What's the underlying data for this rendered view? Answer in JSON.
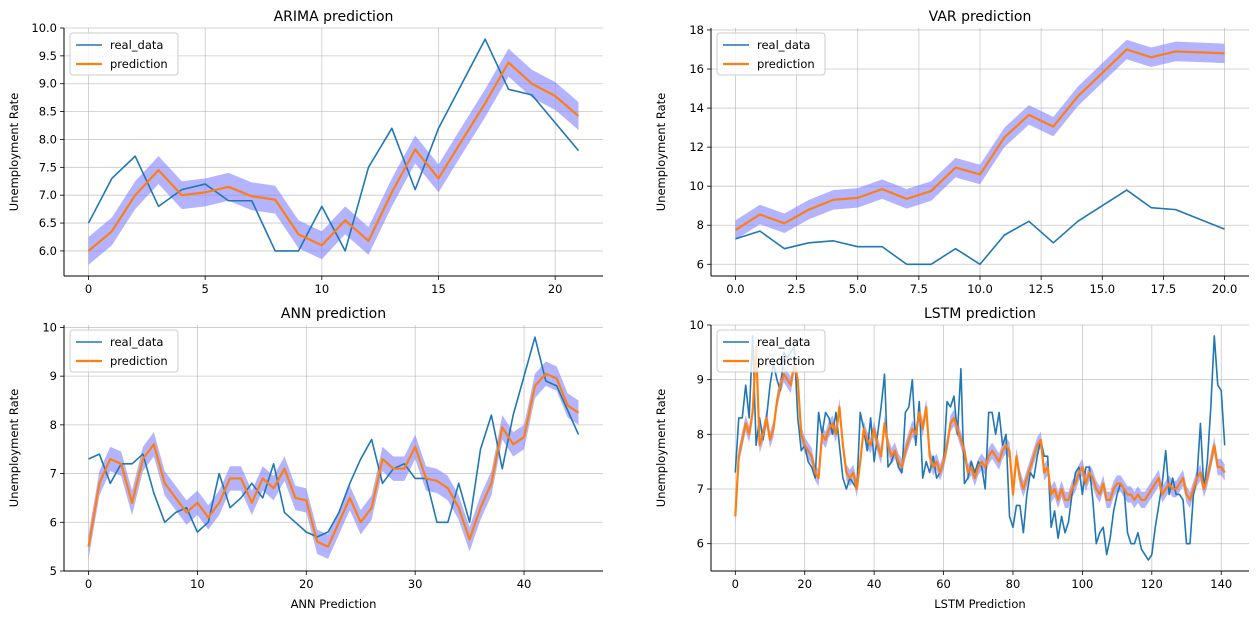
{
  "colors": {
    "real_data": "#1f77b4",
    "prediction": "#ff7f0e",
    "band": "#8080ff"
  },
  "chart_data": [
    {
      "type": "line",
      "title": "ARIMA prediction",
      "xlabel": "",
      "ylabel": "Unemployment Rate",
      "xlim": [
        -1.05,
        22.05
      ],
      "ylim": [
        5.55,
        10.0
      ],
      "xticks": [
        0,
        5,
        10,
        15,
        20
      ],
      "xtick_labels": [
        "0",
        "5",
        "10",
        "15",
        "20"
      ],
      "yticks": [
        6.0,
        6.5,
        7.0,
        7.5,
        8.0,
        8.5,
        9.0,
        9.5,
        10.0
      ],
      "ytick_labels": [
        "6.0",
        "6.5",
        "7.0",
        "7.5",
        "8.0",
        "8.5",
        "9.0",
        "9.5",
        "10.0"
      ],
      "legend": {
        "position": "top-left",
        "entries": [
          "real_data",
          "prediction"
        ]
      },
      "series": [
        {
          "name": "real_data",
          "x": [
            0,
            1,
            2,
            3,
            4,
            5,
            6,
            7,
            8,
            9,
            10,
            11,
            12,
            13,
            14,
            15,
            16,
            17,
            18,
            19,
            20,
            21
          ],
          "values": [
            6.5,
            7.3,
            7.7,
            6.8,
            7.1,
            7.2,
            6.9,
            6.9,
            6.0,
            6.0,
            6.8,
            6.0,
            7.5,
            8.2,
            7.1,
            8.2,
            9.0,
            9.8,
            8.9,
            8.8,
            8.3,
            7.8
          ]
        },
        {
          "name": "prediction",
          "x": [
            0,
            1,
            2,
            3,
            4,
            5,
            6,
            7,
            8,
            9,
            10,
            11,
            12,
            13,
            14,
            15,
            16,
            17,
            18,
            19,
            20,
            21
          ],
          "values": [
            6.0,
            6.35,
            7.0,
            7.45,
            7.0,
            7.05,
            7.15,
            6.98,
            6.92,
            6.3,
            6.1,
            6.55,
            6.18,
            7.05,
            7.82,
            7.3,
            7.98,
            8.65,
            9.38,
            9.0,
            8.78,
            8.42
          ],
          "band": 0.25
        }
      ]
    },
    {
      "type": "line",
      "title": "VAR prediction",
      "xlabel": "",
      "ylabel": "Unemployment Rate",
      "xlim": [
        -1.0,
        21.0
      ],
      "ylim": [
        5.4,
        18.1
      ],
      "xticks": [
        0,
        2.5,
        5,
        7.5,
        10,
        12.5,
        15,
        17.5,
        20
      ],
      "xtick_labels": [
        "0.0",
        "2.5",
        "5.0",
        "7.5",
        "10.0",
        "12.5",
        "15.0",
        "17.5",
        "20.0"
      ],
      "yticks": [
        6,
        8,
        10,
        12,
        14,
        16,
        18
      ],
      "ytick_labels": [
        "6",
        "8",
        "10",
        "12",
        "14",
        "16",
        "18"
      ],
      "legend": {
        "position": "top-left",
        "entries": [
          "real_data",
          "prediction"
        ]
      },
      "series": [
        {
          "name": "real_data",
          "x": [
            0,
            1,
            2,
            3,
            4,
            5,
            6,
            7,
            8,
            9,
            10,
            11,
            12,
            13,
            14,
            15,
            16,
            17,
            18,
            19,
            20
          ],
          "values": [
            7.3,
            7.7,
            6.8,
            7.1,
            7.2,
            6.9,
            6.9,
            6.0,
            6.0,
            6.8,
            6.0,
            7.5,
            8.2,
            7.1,
            8.2,
            9.0,
            9.8,
            8.9,
            8.8,
            8.3,
            7.8
          ]
        },
        {
          "name": "prediction",
          "x": [
            0,
            1,
            2,
            3,
            4,
            5,
            6,
            7,
            8,
            9,
            10,
            11,
            12,
            13,
            14,
            15,
            16,
            17,
            18,
            19,
            20
          ],
          "values": [
            7.75,
            8.55,
            8.1,
            8.8,
            9.3,
            9.4,
            9.85,
            9.35,
            9.75,
            10.95,
            10.6,
            12.5,
            13.65,
            13.05,
            14.6,
            15.8,
            17.0,
            16.6,
            16.9,
            16.85,
            16.8
          ],
          "band": 0.5
        }
      ]
    },
    {
      "type": "line",
      "title": "ANN prediction",
      "xlabel": "ANN Prediction",
      "ylabel": "Unemployment Rate",
      "xlim": [
        -2.25,
        47.25
      ],
      "ylim": [
        5.0,
        10.05
      ],
      "xticks": [
        0,
        10,
        20,
        30,
        40
      ],
      "xtick_labels": [
        "0",
        "10",
        "20",
        "30",
        "40"
      ],
      "yticks": [
        5,
        6,
        7,
        8,
        9,
        10
      ],
      "ytick_labels": [
        "5",
        "6",
        "7",
        "8",
        "9",
        "10"
      ],
      "legend": {
        "position": "top-left",
        "entries": [
          "real_data",
          "prediction"
        ]
      },
      "series": [
        {
          "name": "real_data",
          "x": [
            0,
            1,
            2,
            3,
            4,
            5,
            6,
            7,
            8,
            9,
            10,
            11,
            12,
            13,
            14,
            15,
            16,
            17,
            18,
            19,
            20,
            21,
            22,
            23,
            24,
            25,
            26,
            27,
            28,
            29,
            30,
            31,
            32,
            33,
            34,
            35,
            36,
            37,
            38,
            39,
            40,
            41,
            42,
            43,
            44,
            45
          ],
          "values": [
            7.3,
            7.4,
            6.8,
            7.2,
            7.2,
            7.4,
            6.6,
            6.0,
            6.2,
            6.3,
            5.8,
            6.0,
            7.0,
            6.3,
            6.5,
            6.8,
            6.5,
            7.2,
            6.2,
            6.0,
            5.8,
            5.7,
            5.8,
            6.2,
            6.8,
            7.3,
            7.7,
            6.8,
            7.1,
            7.2,
            6.9,
            6.9,
            6.0,
            6.0,
            6.8,
            6.0,
            7.5,
            8.2,
            7.1,
            8.2,
            9.0,
            9.8,
            8.9,
            8.8,
            8.3,
            7.8
          ]
        },
        {
          "name": "prediction",
          "x": [
            0,
            1,
            2,
            3,
            4,
            5,
            6,
            7,
            8,
            9,
            10,
            11,
            12,
            13,
            14,
            15,
            16,
            17,
            18,
            19,
            20,
            21,
            22,
            23,
            24,
            25,
            26,
            27,
            28,
            29,
            30,
            31,
            32,
            33,
            34,
            35,
            36,
            37,
            38,
            39,
            40,
            41,
            42,
            43,
            44,
            45
          ],
          "values": [
            5.5,
            6.8,
            7.3,
            7.2,
            6.4,
            7.3,
            7.6,
            6.8,
            6.5,
            6.2,
            6.4,
            6.1,
            6.4,
            6.9,
            6.9,
            6.4,
            6.9,
            6.7,
            7.1,
            6.5,
            6.45,
            5.6,
            5.5,
            6.0,
            6.5,
            6.0,
            6.3,
            7.3,
            7.1,
            7.1,
            7.55,
            6.9,
            6.85,
            6.7,
            6.3,
            5.65,
            6.3,
            6.8,
            7.95,
            7.6,
            7.75,
            8.8,
            9.05,
            8.95,
            8.4,
            8.25
          ],
          "band": 0.25
        }
      ]
    },
    {
      "type": "line",
      "title": "LSTM prediction",
      "xlabel": "LSTM Prediction",
      "ylabel": "Unemployment Rate",
      "xlim": [
        -7.0,
        148.0
      ],
      "ylim": [
        5.5,
        10.0
      ],
      "xticks": [
        0,
        20,
        40,
        60,
        80,
        100,
        120,
        140
      ],
      "xtick_labels": [
        "0",
        "20",
        "40",
        "60",
        "80",
        "100",
        "120",
        "140"
      ],
      "yticks": [
        6,
        7,
        8,
        9,
        10
      ],
      "ytick_labels": [
        "6",
        "7",
        "8",
        "9",
        "10"
      ],
      "legend": {
        "position": "top-left",
        "entries": [
          "real_data",
          "prediction"
        ]
      },
      "series": [
        {
          "name": "real_data",
          "x_start": 0,
          "values": [
            7.3,
            8.3,
            8.3,
            8.9,
            8.3,
            9.8,
            7.8,
            8.3,
            7.9,
            8.3,
            8.9,
            9.3,
            9.0,
            8.8,
            9.5,
            9.4,
            9.5,
            9.6,
            8.3,
            7.7,
            7.8,
            7.5,
            7.4,
            7.2,
            8.4,
            8.0,
            8.4,
            8.3,
            8.0,
            8.4,
            7.8,
            7.2,
            7.0,
            7.2,
            7.1,
            7.0,
            8.4,
            8.1,
            7.7,
            8.3,
            7.5,
            8.0,
            8.5,
            9.1,
            7.4,
            7.5,
            7.7,
            7.4,
            7.3,
            8.4,
            8.5,
            9.0,
            7.8,
            8.6,
            7.2,
            7.5,
            7.3,
            7.6,
            7.2,
            7.3,
            7.5,
            8.6,
            8.5,
            8.7,
            8.0,
            9.2,
            7.1,
            7.2,
            7.5,
            7.3,
            7.5,
            7.4,
            7.0,
            8.4,
            8.4,
            8.0,
            8.4,
            7.8,
            8.0,
            6.5,
            6.3,
            6.7,
            6.7,
            6.2,
            6.9,
            7.3,
            7.2,
            7.6,
            7.9,
            7.6,
            7.6,
            6.3,
            6.6,
            6.1,
            6.5,
            6.2,
            6.4,
            6.9,
            7.3,
            7.4,
            6.9,
            7.4,
            7.4,
            6.8,
            6.0,
            6.2,
            6.3,
            5.8,
            6.1,
            6.6,
            6.9,
            7.1,
            7.0,
            6.2,
            6.0,
            6.0,
            6.2,
            5.9,
            5.8,
            5.7,
            5.8,
            6.3,
            6.7,
            7.1,
            7.7,
            6.9,
            7.2,
            6.9,
            6.9,
            6.8,
            6.0,
            6.0,
            6.9,
            7.2,
            8.2,
            7.0,
            7.5,
            8.5,
            9.8,
            8.9,
            8.8,
            7.8
          ]
        },
        {
          "name": "prediction",
          "x_start": 0,
          "values": [
            6.5,
            7.6,
            7.9,
            8.2,
            8.0,
            8.4,
            9.6,
            7.8,
            8.0,
            8.3,
            7.9,
            8.1,
            8.6,
            8.9,
            9.1,
            9.0,
            8.9,
            9.3,
            9.0,
            8.0,
            7.8,
            7.7,
            7.6,
            7.3,
            7.2,
            8.0,
            7.9,
            8.1,
            8.2,
            8.0,
            8.5,
            7.8,
            7.3,
            7.2,
            7.3,
            7.0,
            7.5,
            8.1,
            7.9,
            7.8,
            8.1,
            7.8,
            7.6,
            8.2,
            7.8,
            7.6,
            7.7,
            7.5,
            7.4,
            7.7,
            7.9,
            8.1,
            8.0,
            8.4,
            8.1,
            8.5,
            7.6,
            7.4,
            7.5,
            7.3,
            7.5,
            7.8,
            8.2,
            8.3,
            8.1,
            7.9,
            7.7,
            7.3,
            7.4,
            7.2,
            7.4,
            7.5,
            7.4,
            7.6,
            7.7,
            7.6,
            7.5,
            7.7,
            7.8,
            7.7,
            6.9,
            7.6,
            7.2,
            7.0,
            7.2,
            7.4,
            7.6,
            7.8,
            7.9,
            7.3,
            7.4,
            6.9,
            7.0,
            6.8,
            7.0,
            6.8,
            6.8,
            7.0,
            7.1,
            7.3,
            7.4,
            7.1,
            7.3,
            7.2,
            7.0,
            6.9,
            7.1,
            6.8,
            6.8,
            7.0,
            7.1,
            7.1,
            7.0,
            6.9,
            6.9,
            6.8,
            6.9,
            6.8,
            6.8,
            6.9,
            7.0,
            7.1,
            7.2,
            6.9,
            7.0,
            7.1,
            7.0,
            7.0,
            7.1,
            7.2,
            6.9,
            6.8,
            7.0,
            7.2,
            7.3,
            7.0,
            7.2,
            7.5,
            7.8,
            7.4,
            7.4,
            7.3
          ],
          "band": 0.15
        }
      ]
    }
  ]
}
